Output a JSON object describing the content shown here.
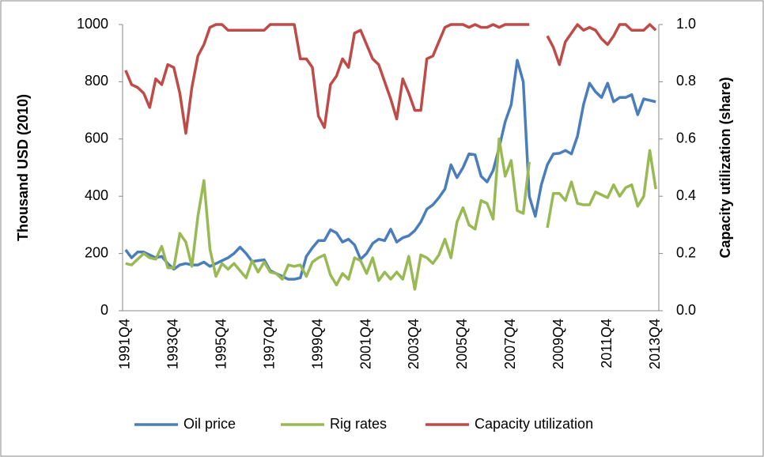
{
  "chart_data": {
    "type": "line",
    "y_label": "Thousand USD (2010)",
    "y2_label": "Capacity utilization (share)",
    "categories": [
      "1991Q4",
      null,
      null,
      null,
      null,
      null,
      null,
      null,
      "1993Q4",
      null,
      null,
      null,
      null,
      null,
      null,
      null,
      "1995Q4",
      null,
      null,
      null,
      null,
      null,
      null,
      null,
      "1997Q4",
      null,
      null,
      null,
      null,
      null,
      null,
      null,
      "1999Q4",
      null,
      null,
      null,
      null,
      null,
      null,
      null,
      "2001Q4",
      null,
      null,
      null,
      null,
      null,
      null,
      null,
      "2003Q4",
      null,
      null,
      null,
      null,
      null,
      null,
      null,
      "2005Q4",
      null,
      null,
      null,
      null,
      null,
      null,
      null,
      "2007Q4",
      null,
      null,
      null,
      null,
      null,
      null,
      null,
      "2009Q4",
      null,
      null,
      null,
      null,
      null,
      null,
      null,
      "2011Q4",
      null,
      null,
      null,
      null,
      null,
      null,
      null,
      "2013Q4"
    ],
    "ylim": [
      0,
      1000
    ],
    "yticks": [
      0,
      200,
      400,
      600,
      800,
      1000
    ],
    "y2lim": [
      0,
      1
    ],
    "y2ticks": [
      {
        "value": 0,
        "label": "0.0"
      },
      0.2,
      0.4,
      0.6,
      0.8,
      {
        "value": 1,
        "label": "1.0"
      }
    ],
    "grid": false,
    "legend": "bottom",
    "series": [
      {
        "name": "Oil price",
        "color": "#4a7ebb",
        "values": [
          213,
          185,
          205,
          205,
          195,
          185,
          190,
          165,
          145,
          160,
          165,
          160,
          160,
          170,
          155,
          165,
          175,
          185,
          200,
          222,
          200,
          172,
          175,
          178,
          140,
          130,
          120,
          110,
          110,
          115,
          190,
          220,
          245,
          245,
          283,
          272,
          240,
          250,
          230,
          180,
          200,
          235,
          250,
          245,
          285,
          240,
          255,
          262,
          280,
          310,
          355,
          370,
          395,
          425,
          510,
          465,
          500,
          548,
          545,
          470,
          450,
          490,
          570,
          660,
          720,
          875,
          800,
          400,
          330,
          440,
          510,
          548,
          550,
          560,
          548,
          610,
          720,
          795,
          765,
          745,
          795,
          730,
          745,
          745,
          755,
          685,
          740,
          735,
          730
        ]
      },
      {
        "name": "Rig rates",
        "color": "#98b954",
        "values": [
          165,
          160,
          180,
          200,
          185,
          180,
          225,
          150,
          150,
          270,
          240,
          155,
          330,
          455,
          215,
          120,
          165,
          145,
          165,
          140,
          115,
          175,
          135,
          170,
          135,
          130,
          110,
          160,
          155,
          160,
          120,
          170,
          185,
          195,
          125,
          90,
          130,
          110,
          185,
          175,
          130,
          185,
          105,
          135,
          110,
          135,
          110,
          190,
          75,
          195,
          185,
          165,
          195,
          250,
          185,
          310,
          360,
          300,
          285,
          385,
          375,
          320,
          600,
          470,
          525,
          350,
          340,
          520,
          null,
          null,
          290,
          410,
          410,
          385,
          450,
          375,
          370,
          370,
          415,
          405,
          395,
          440,
          400,
          430,
          440,
          365,
          400,
          560,
          425
        ]
      },
      {
        "name": "Capacity utilization",
        "color": "#be4b48",
        "axis": "y2",
        "values": [
          0.84,
          0.79,
          0.78,
          0.76,
          0.71,
          0.81,
          0.79,
          0.86,
          0.85,
          0.76,
          0.62,
          0.78,
          0.89,
          0.93,
          0.99,
          1.0,
          1.0,
          0.98,
          0.98,
          0.98,
          0.98,
          0.98,
          0.98,
          0.98,
          1.0,
          1.0,
          1.0,
          1.0,
          1.0,
          0.88,
          0.88,
          0.85,
          0.68,
          0.64,
          0.79,
          0.82,
          0.88,
          0.85,
          0.97,
          0.98,
          0.93,
          0.88,
          0.86,
          0.8,
          0.74,
          0.67,
          0.81,
          0.76,
          0.7,
          0.7,
          0.88,
          0.89,
          0.94,
          0.99,
          1.0,
          1.0,
          1.0,
          0.99,
          1.0,
          0.99,
          0.99,
          1.0,
          0.99,
          1.0,
          1.0,
          1.0,
          1.0,
          1.0,
          null,
          null,
          0.96,
          0.92,
          0.86,
          0.94,
          0.97,
          1.0,
          0.98,
          0.99,
          0.98,
          0.95,
          0.93,
          0.96,
          1.0,
          1.0,
          0.98,
          0.98,
          0.98,
          1.0,
          0.98
        ]
      }
    ]
  }
}
